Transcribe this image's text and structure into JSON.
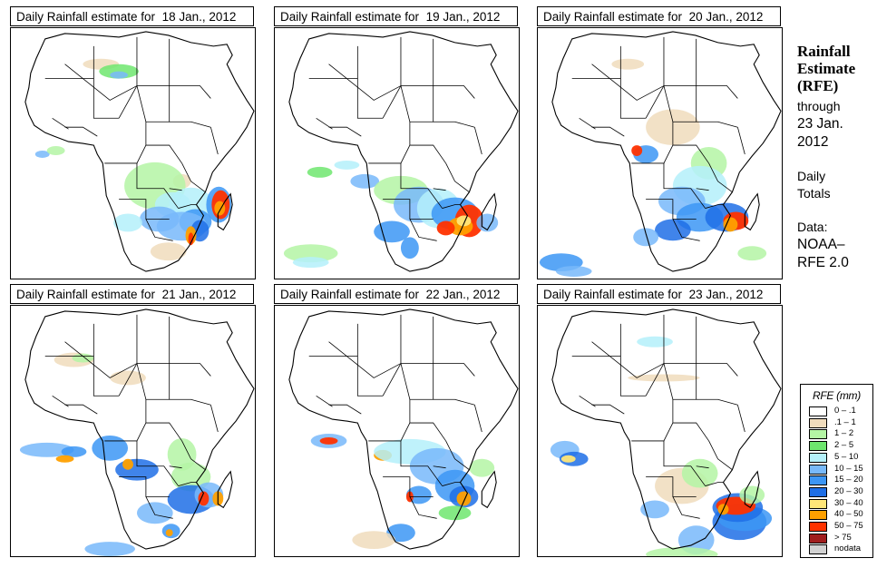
{
  "panels": [
    {
      "title_prefix": "Daily Rainfall estimate for",
      "date": "18 Jan., 2012"
    },
    {
      "title_prefix": "Daily Rainfall estimate for",
      "date": "19 Jan., 2012"
    },
    {
      "title_prefix": "Daily Rainfall estimate for",
      "date": "20 Jan., 2012"
    },
    {
      "title_prefix": "Daily Rainfall estimate for",
      "date": "21 Jan., 2012"
    },
    {
      "title_prefix": "Daily Rainfall estimate for",
      "date": "22 Jan., 2012"
    },
    {
      "title_prefix": "Daily Rainfall estimate for",
      "date": "23 Jan., 2012"
    }
  ],
  "sidebar": {
    "title_line1": "Rainfall",
    "title_line2": "Estimate",
    "title_line3": "(RFE)",
    "through_label": "through",
    "through_date_line1": "23 Jan.",
    "through_date_line2": "2012",
    "period_line1": "Daily",
    "period_line2": "Totals",
    "data_label": "Data:",
    "data_source_line1": "NOAA–",
    "data_source_line2": "RFE 2.0"
  },
  "legend": {
    "title": "RFE (mm)",
    "items": [
      {
        "label": "0 – .1",
        "color": "#ffffff"
      },
      {
        "label": ".1 – 1",
        "color": "#f0dcbc"
      },
      {
        "label": "1 – 2",
        "color": "#b4f5a4"
      },
      {
        "label": "2 – 5",
        "color": "#6ee66e"
      },
      {
        "label": "5 – 10",
        "color": "#b4f0fa"
      },
      {
        "label": "10 – 15",
        "color": "#78b9fa"
      },
      {
        "label": "15 – 20",
        "color": "#3c96f5"
      },
      {
        "label": "20 – 30",
        "color": "#1e6ee6"
      },
      {
        "label": "30 – 40",
        "color": "#ffe678"
      },
      {
        "label": "40 – 50",
        "color": "#ffa000"
      },
      {
        "label": "50 – 75",
        "color": "#ff3200"
      },
      {
        "label": "> 75",
        "color": "#a01e1e"
      },
      {
        "label": "nodata",
        "color": "#d2d2d2"
      }
    ]
  }
}
